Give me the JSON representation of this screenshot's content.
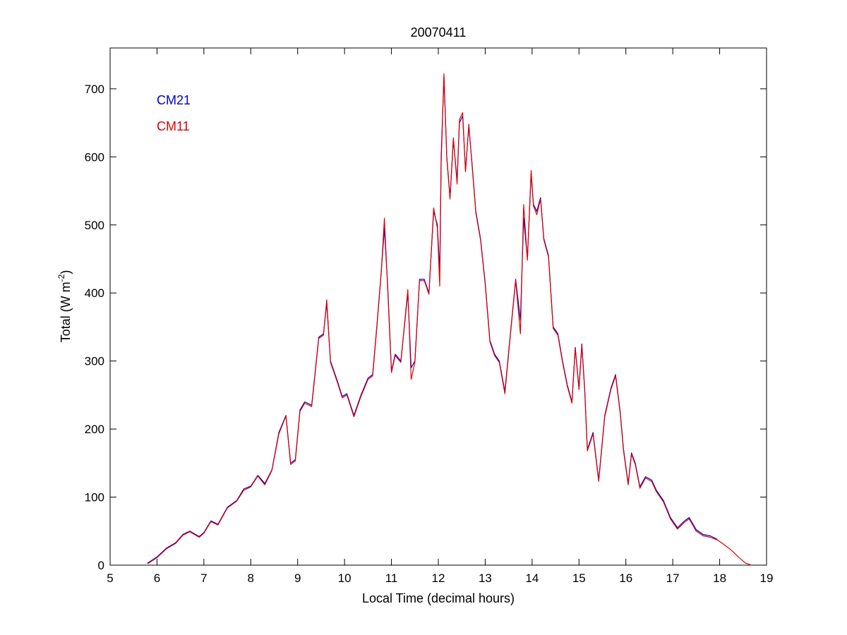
{
  "chart_data": {
    "type": "line",
    "title": "20070411",
    "xlabel": "Local Time (decimal hours)",
    "ylabel_parts": {
      "before": "Total (W m",
      "superscript": "-2",
      "after": ")"
    },
    "xlim": [
      5,
      19
    ],
    "ylim": [
      0,
      760
    ],
    "xticks": [
      5,
      6,
      7,
      8,
      9,
      10,
      11,
      12,
      13,
      14,
      15,
      16,
      17,
      18,
      19
    ],
    "yticks": [
      0,
      100,
      200,
      300,
      400,
      500,
      600,
      700
    ],
    "grid": false,
    "legend_position": "top-left",
    "series": [
      {
        "name": "CM21",
        "color": "#0000c8",
        "x": [
          5.8,
          6.0,
          6.2,
          6.4,
          6.55,
          6.7,
          6.9,
          7.0,
          7.15,
          7.3,
          7.5,
          7.7,
          7.85,
          8.0,
          8.15,
          8.3,
          8.45,
          8.6,
          8.75,
          8.85,
          8.95,
          9.05,
          9.15,
          9.3,
          9.45,
          9.55,
          9.62,
          9.7,
          9.85,
          9.95,
          10.05,
          10.2,
          10.35,
          10.5,
          10.6,
          10.7,
          10.78,
          10.85,
          10.92,
          11.0,
          11.08,
          11.2,
          11.35,
          11.42,
          11.5,
          11.6,
          11.7,
          11.8,
          11.9,
          11.98,
          12.03,
          12.06,
          12.12,
          12.18,
          12.25,
          12.32,
          12.4,
          12.45,
          12.52,
          12.58,
          12.65,
          12.72,
          12.8,
          12.9,
          13.0,
          13.1,
          13.2,
          13.3,
          13.42,
          13.55,
          13.65,
          13.75,
          13.82,
          13.9,
          13.98,
          14.03,
          14.1,
          14.18,
          14.25,
          14.35,
          14.45,
          14.55,
          14.65,
          14.75,
          14.85,
          14.92,
          15.0,
          15.06,
          15.12,
          15.18,
          15.3,
          15.42,
          15.55,
          15.68,
          15.78,
          15.88,
          15.95,
          16.05,
          16.12,
          16.2,
          16.3,
          16.42,
          16.55,
          16.65,
          16.8,
          16.95,
          17.1,
          17.25,
          17.35,
          17.5,
          17.65,
          17.8,
          17.95
        ],
        "y": [
          3,
          12,
          25,
          33,
          45,
          50,
          42,
          48,
          65,
          60,
          85,
          95,
          112,
          116,
          132,
          120,
          140,
          195,
          220,
          150,
          155,
          228,
          240,
          235,
          335,
          340,
          385,
          300,
          270,
          248,
          252,
          220,
          250,
          275,
          280,
          360,
          430,
          495,
          410,
          285,
          310,
          300,
          400,
          290,
          300,
          420,
          420,
          400,
          520,
          500,
          430,
          600,
          718,
          600,
          540,
          625,
          565,
          650,
          660,
          580,
          645,
          590,
          520,
          480,
          415,
          330,
          310,
          300,
          255,
          350,
          420,
          360,
          510,
          450,
          575,
          530,
          520,
          540,
          480,
          455,
          350,
          340,
          300,
          265,
          240,
          320,
          260,
          325,
          260,
          170,
          195,
          125,
          220,
          260,
          280,
          225,
          170,
          120,
          165,
          150,
          115,
          130,
          125,
          110,
          95,
          70,
          55,
          65,
          70,
          52,
          45,
          43,
          38
        ]
      },
      {
        "name": "CM11",
        "color": "#e00000",
        "x": [
          5.8,
          6.0,
          6.2,
          6.4,
          6.55,
          6.7,
          6.9,
          7.0,
          7.15,
          7.3,
          7.5,
          7.7,
          7.85,
          8.0,
          8.15,
          8.3,
          8.45,
          8.6,
          8.75,
          8.85,
          8.95,
          9.05,
          9.15,
          9.3,
          9.45,
          9.55,
          9.62,
          9.7,
          9.85,
          9.95,
          10.05,
          10.2,
          10.35,
          10.5,
          10.6,
          10.7,
          10.78,
          10.85,
          10.92,
          11.0,
          11.08,
          11.2,
          11.35,
          11.42,
          11.5,
          11.6,
          11.7,
          11.8,
          11.9,
          11.98,
          12.03,
          12.06,
          12.12,
          12.18,
          12.25,
          12.32,
          12.4,
          12.45,
          12.52,
          12.58,
          12.65,
          12.72,
          12.8,
          12.9,
          13.0,
          13.1,
          13.2,
          13.3,
          13.42,
          13.55,
          13.65,
          13.75,
          13.82,
          13.9,
          13.98,
          14.03,
          14.1,
          14.18,
          14.25,
          14.35,
          14.45,
          14.55,
          14.65,
          14.75,
          14.85,
          14.92,
          15.0,
          15.06,
          15.12,
          15.18,
          15.3,
          15.42,
          15.55,
          15.68,
          15.78,
          15.88,
          15.95,
          16.05,
          16.12,
          16.2,
          16.3,
          16.42,
          16.55,
          16.65,
          16.8,
          16.95,
          17.1,
          17.25,
          17.35,
          17.5,
          17.65,
          17.8,
          17.95,
          18.1,
          18.25,
          18.4,
          18.55,
          18.68
        ],
        "y": [
          2,
          11,
          24,
          32,
          44,
          49,
          41,
          47,
          64,
          59,
          84,
          94,
          110,
          115,
          131,
          118,
          139,
          193,
          219,
          148,
          153,
          226,
          238,
          233,
          333,
          338,
          390,
          298,
          268,
          246,
          250,
          218,
          248,
          273,
          278,
          358,
          428,
          510,
          405,
          283,
          308,
          298,
          405,
          273,
          298,
          418,
          418,
          398,
          525,
          495,
          410,
          590,
          722,
          598,
          538,
          628,
          560,
          655,
          665,
          578,
          648,
          588,
          518,
          478,
          413,
          328,
          308,
          298,
          252,
          348,
          418,
          340,
          530,
          448,
          580,
          528,
          515,
          538,
          478,
          453,
          348,
          338,
          298,
          263,
          238,
          318,
          258,
          322,
          258,
          168,
          193,
          123,
          218,
          258,
          278,
          223,
          168,
          118,
          163,
          148,
          113,
          128,
          123,
          108,
          93,
          68,
          53,
          63,
          68,
          50,
          43,
          41,
          37,
          30,
          22,
          12,
          3,
          0
        ]
      }
    ]
  }
}
